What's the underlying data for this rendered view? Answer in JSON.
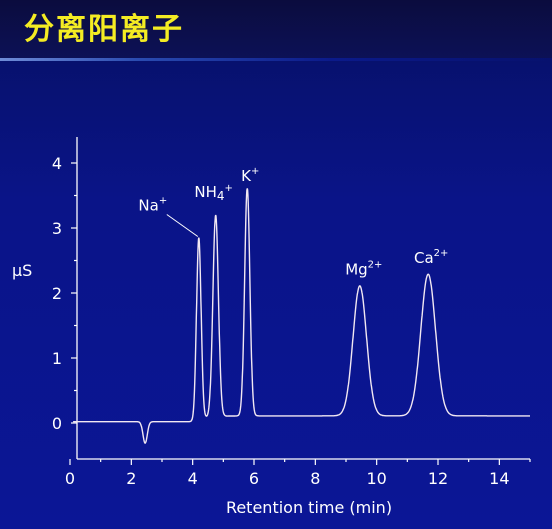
{
  "page": {
    "title": "分离阳离子"
  },
  "chart_data": {
    "type": "line",
    "title": "",
    "xlabel": "Retention time (min)",
    "ylabel": "µS",
    "xlim": [
      0,
      15
    ],
    "ylim": [
      0,
      4.5
    ],
    "x_ticks": [
      0,
      2,
      4,
      6,
      8,
      10,
      12,
      14
    ],
    "y_ticks": [
      0,
      1,
      2,
      3,
      4
    ],
    "grid": false,
    "baseline": 0.02,
    "dip": {
      "x": 2.45,
      "depth": -0.33,
      "width": 0.07
    },
    "peaks": [
      {
        "label": "Na",
        "charge": "+",
        "x": 4.2,
        "height": 2.9,
        "width": 0.075
      },
      {
        "label": "NH4",
        "charge": "+",
        "x": 4.75,
        "height": 3.2,
        "width": 0.09
      },
      {
        "label": "K",
        "charge": "+",
        "x": 5.78,
        "height": 3.6,
        "width": 0.085
      },
      {
        "label": "Mg",
        "charge": "2+",
        "x": 9.45,
        "height": 2.1,
        "width": 0.22
      },
      {
        "label": "Ca",
        "charge": "2+",
        "x": 11.68,
        "height": 2.28,
        "width": 0.24
      }
    ],
    "line_color": "#f2e8f2"
  }
}
